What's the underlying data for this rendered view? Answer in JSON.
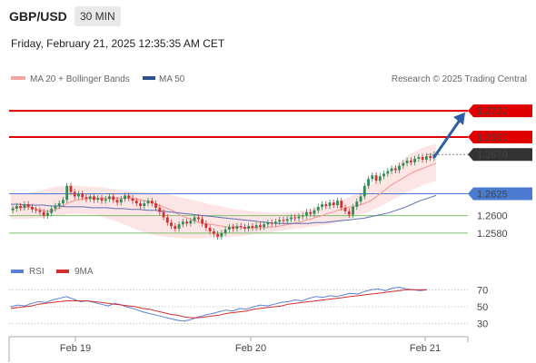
{
  "header": {
    "pair": "GBP/USD",
    "timeframe": "30 MIN",
    "datetime": "Friday, February 21, 2025 12:35:35 AM CET"
  },
  "legend": {
    "ma20_label": "MA 20 + Bollinger Bands",
    "ma50_label": "MA 50",
    "attribution": "Research © 2025 Trading Central",
    "rsi_label": "RSI",
    "ma9_label": "9MA"
  },
  "colors": {
    "up": "#2e8b57",
    "down": "#d32f2f",
    "resistance": "#e00000",
    "support": "#7cbf6b",
    "pivot": "#4a7bd0",
    "ma20": "#f4a3a3",
    "ma50": "#5b6fb3",
    "bollinger": "#fde0e0",
    "current": "#333333",
    "arrow": "#2f5ea8",
    "rsi": "#5b7fd6",
    "rsi_ma": "#d32f2f"
  },
  "chart_data": [
    {
      "type": "candlestick",
      "series_names": [
        "MA 20 + Bollinger Bands",
        "MA 50"
      ],
      "ylim": [
        1.2558,
        1.2745
      ],
      "x_ticks": [
        "Feb 19",
        "Feb 20",
        "Feb 21"
      ],
      "levels": [
        {
          "value": 1.272,
          "label": "1.2720",
          "kind": "resistance"
        },
        {
          "value": 1.269,
          "label": "1.2690",
          "kind": "resistance"
        },
        {
          "value": 1.267,
          "label": "1.2670",
          "kind": "current"
        },
        {
          "value": 1.2625,
          "label": "1.2625",
          "kind": "pivot"
        },
        {
          "value": 1.26,
          "label": "1.2600",
          "kind": "support"
        },
        {
          "value": 1.258,
          "label": "1.2580",
          "kind": "support"
        }
      ],
      "close": [
        1.2608,
        1.2611,
        1.2609,
        1.2613,
        1.261,
        1.2607,
        1.2606,
        1.2604,
        1.26,
        1.2603,
        1.2608,
        1.2611,
        1.2614,
        1.2618,
        1.2634,
        1.2627,
        1.2622,
        1.2625,
        1.2621,
        1.2619,
        1.2622,
        1.2618,
        1.262,
        1.2617,
        1.2619,
        1.2622,
        1.2618,
        1.2615,
        1.2619,
        1.2623,
        1.262,
        1.2617,
        1.2614,
        1.2611,
        1.2614,
        1.2617,
        1.2614,
        1.2609,
        1.2604,
        1.2598,
        1.2592,
        1.2588,
        1.2585,
        1.259,
        1.2593,
        1.2591,
        1.2594,
        1.2598,
        1.2596,
        1.2591,
        1.2586,
        1.2582,
        1.2579,
        1.2576,
        1.258,
        1.2584,
        1.2587,
        1.2585,
        1.2588,
        1.2587,
        1.2585,
        1.2588,
        1.2586,
        1.2589,
        1.2587,
        1.259,
        1.2592,
        1.2591,
        1.2593,
        1.2595,
        1.2594,
        1.2596,
        1.2598,
        1.2597,
        1.2599,
        1.26,
        1.2604,
        1.2602,
        1.2606,
        1.261,
        1.2613,
        1.2611,
        1.2615,
        1.2612,
        1.2617,
        1.2609,
        1.2605,
        1.2601,
        1.261,
        1.2616,
        1.2622,
        1.2634,
        1.2642,
        1.2646,
        1.264,
        1.2645,
        1.2648,
        1.2651,
        1.2654,
        1.2652,
        1.2657,
        1.266,
        1.2663,
        1.2661,
        1.2665,
        1.2667,
        1.2664,
        1.2668,
        1.2666,
        1.267
      ],
      "ma20": [
        1.2608,
        1.2609,
        1.2609,
        1.2609,
        1.261,
        1.2609,
        1.2607,
        1.2606,
        1.2605,
        1.2605,
        1.2607,
        1.2609,
        1.2612,
        1.2615,
        1.2617,
        1.2618,
        1.2619,
        1.262,
        1.262,
        1.262,
        1.262,
        1.262,
        1.262,
        1.262,
        1.262,
        1.262,
        1.262,
        1.2619,
        1.2619,
        1.2618,
        1.2617,
        1.2616,
        1.2614,
        1.2612,
        1.261,
        1.2608,
        1.2606,
        1.2603,
        1.26,
        1.2598,
        1.2596,
        1.2594,
        1.2592,
        1.2591,
        1.259,
        1.259,
        1.2589,
        1.2588,
        1.2587,
        1.2587,
        1.2587,
        1.2587,
        1.2586,
        1.2586,
        1.2586,
        1.2586,
        1.2586,
        1.2586,
        1.2587,
        1.2587,
        1.2588,
        1.2589,
        1.259,
        1.2591,
        1.2592,
        1.2593,
        1.2595,
        1.2596,
        1.2598,
        1.2599,
        1.2601,
        1.2603,
        1.2604,
        1.2606,
        1.2607,
        1.2609,
        1.261,
        1.2611,
        1.2612,
        1.2614,
        1.2616,
        1.2619,
        1.2623,
        1.2627,
        1.2631,
        1.2635,
        1.2638,
        1.2641,
        1.2644,
        1.2647,
        1.265,
        1.2652,
        1.2654,
        1.2656,
        1.2658,
        1.266
      ],
      "ma50": [
        1.2613,
        1.2613,
        1.2612,
        1.2612,
        1.2612,
        1.2611,
        1.2611,
        1.261,
        1.261,
        1.261,
        1.2609,
        1.2609,
        1.2609,
        1.2608,
        1.2608,
        1.2607,
        1.2607,
        1.2606,
        1.2606,
        1.2605,
        1.2604,
        1.2603,
        1.2602,
        1.2601,
        1.26,
        1.2599,
        1.2598,
        1.2597,
        1.2596,
        1.2595,
        1.2594,
        1.2593,
        1.2592,
        1.2591,
        1.2591,
        1.2591,
        1.2591,
        1.2591,
        1.2592,
        1.2592,
        1.2593,
        1.2594,
        1.2595,
        1.2596,
        1.2597,
        1.2599,
        1.2601,
        1.2603,
        1.2606,
        1.2609,
        1.2613,
        1.2617,
        1.262,
        1.2623
      ],
      "bb_upper": [
        1.2624,
        1.2625,
        1.2628,
        1.2632,
        1.2634,
        1.2634,
        1.2633,
        1.2632,
        1.263,
        1.2628,
        1.2627,
        1.2626,
        1.2624,
        1.262,
        1.2617,
        1.2613,
        1.261,
        1.2607,
        1.2605,
        1.2604,
        1.2603,
        1.2604,
        1.2606,
        1.2609,
        1.2613,
        1.2618,
        1.2625,
        1.2634,
        1.2645,
        1.2658,
        1.267,
        1.2678,
        1.2682
      ],
      "bb_lower": [
        1.2596,
        1.2596,
        1.2597,
        1.2599,
        1.2601,
        1.2602,
        1.2601,
        1.2598,
        1.2593,
        1.2587,
        1.2581,
        1.2577,
        1.2575,
        1.2574,
        1.2574,
        1.2574,
        1.2575,
        1.2576,
        1.2578,
        1.258,
        1.2582,
        1.2584,
        1.2586,
        1.2588,
        1.259,
        1.2594,
        1.2599,
        1.2605,
        1.2612,
        1.262,
        1.2628,
        1.2635,
        1.264
      ]
    },
    {
      "type": "line",
      "series_names": [
        "RSI",
        "9MA"
      ],
      "ylim": [
        20,
        80
      ],
      "y_ticks": [
        70,
        50,
        30
      ],
      "rsi": [
        50,
        52,
        51,
        54,
        56,
        55,
        58,
        60,
        62,
        59,
        56,
        57,
        55,
        53,
        51,
        54,
        52,
        49,
        47,
        44,
        42,
        40,
        38,
        36,
        34,
        33,
        35,
        38,
        40,
        42,
        44,
        46,
        45,
        48,
        47,
        50,
        52,
        51,
        53,
        55,
        56,
        58,
        57,
        60,
        62,
        61,
        63,
        62,
        64,
        66,
        65,
        68,
        70,
        71,
        69,
        72,
        73,
        71,
        70,
        69,
        70
      ],
      "rsi_ma": [
        48,
        49,
        50,
        51,
        53,
        54,
        55,
        56,
        57,
        57,
        57,
        57,
        56,
        55,
        54,
        53,
        52,
        51,
        50,
        48,
        47,
        45,
        43,
        41,
        40,
        38,
        37,
        37,
        38,
        39,
        40,
        42,
        43,
        44,
        45,
        47,
        48,
        49,
        50,
        51,
        53,
        54,
        55,
        56,
        57,
        58,
        59,
        60,
        61,
        62,
        63,
        64,
        65,
        66,
        67,
        68,
        69,
        70,
        70,
        70,
        70
      ]
    }
  ]
}
